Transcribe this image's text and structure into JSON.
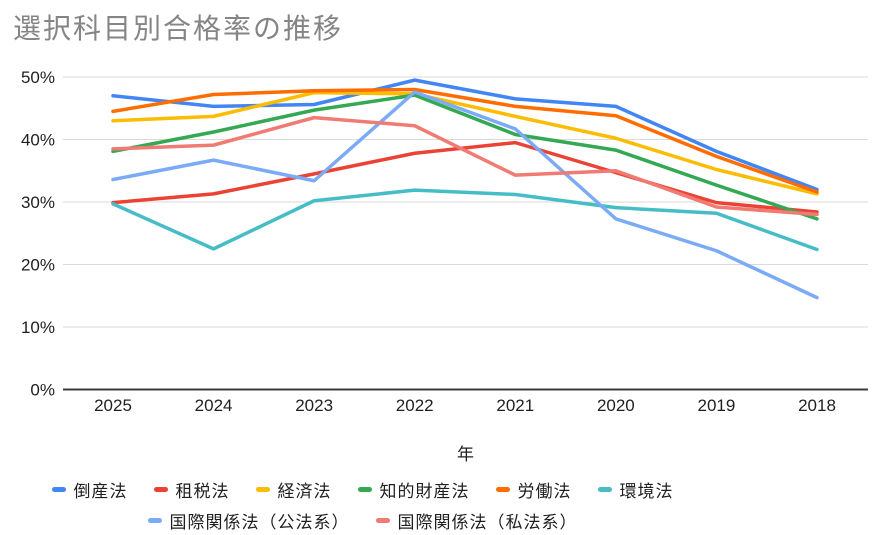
{
  "title": "選択科目別合格率の推移",
  "chart_data": {
    "type": "line",
    "x": [
      "2025",
      "2024",
      "2023",
      "2022",
      "2021",
      "2020",
      "2019",
      "2018"
    ],
    "xlabel": "年",
    "ylabel": "",
    "ylim": [
      0,
      50
    ],
    "yticks": [
      0,
      10,
      20,
      30,
      40,
      50
    ],
    "ytick_suffix": "%",
    "grid": true,
    "legend_position": "bottom",
    "axis_color": "#3b3b3b",
    "gridline_color": "#dadada",
    "series": [
      {
        "name": "倒産法",
        "color": "#4285F4",
        "values": [
          47.0,
          45.3,
          45.6,
          49.5,
          46.5,
          45.3,
          38.1,
          32.0
        ]
      },
      {
        "name": "租税法",
        "color": "#EA4335",
        "values": [
          29.9,
          31.3,
          34.5,
          37.8,
          39.5,
          34.7,
          29.9,
          28.4
        ]
      },
      {
        "name": "経済法",
        "color": "#FBBC04",
        "values": [
          43.0,
          43.7,
          47.5,
          47.3,
          43.7,
          40.2,
          35.2,
          31.3
        ]
      },
      {
        "name": "知的財産法",
        "color": "#34A853",
        "values": [
          38.1,
          41.2,
          44.7,
          47.1,
          40.8,
          38.3,
          32.7,
          27.3
        ]
      },
      {
        "name": "労働法",
        "color": "#FF6D01",
        "values": [
          44.5,
          47.2,
          47.8,
          48.0,
          45.3,
          43.8,
          37.3,
          31.6
        ]
      },
      {
        "name": "環境法",
        "color": "#46BDC6",
        "values": [
          29.7,
          22.5,
          30.2,
          31.9,
          31.2,
          29.1,
          28.2,
          22.4
        ]
      },
      {
        "name": "国際関係法（公法系）",
        "color": "#7BAAF7",
        "values": [
          33.6,
          36.7,
          33.4,
          47.6,
          41.7,
          27.3,
          22.2,
          14.7
        ]
      },
      {
        "name": "国際関係法（私法系）",
        "color": "#F07B72",
        "values": [
          38.5,
          39.1,
          43.5,
          42.2,
          34.3,
          35.0,
          29.2,
          28.0
        ]
      }
    ]
  }
}
